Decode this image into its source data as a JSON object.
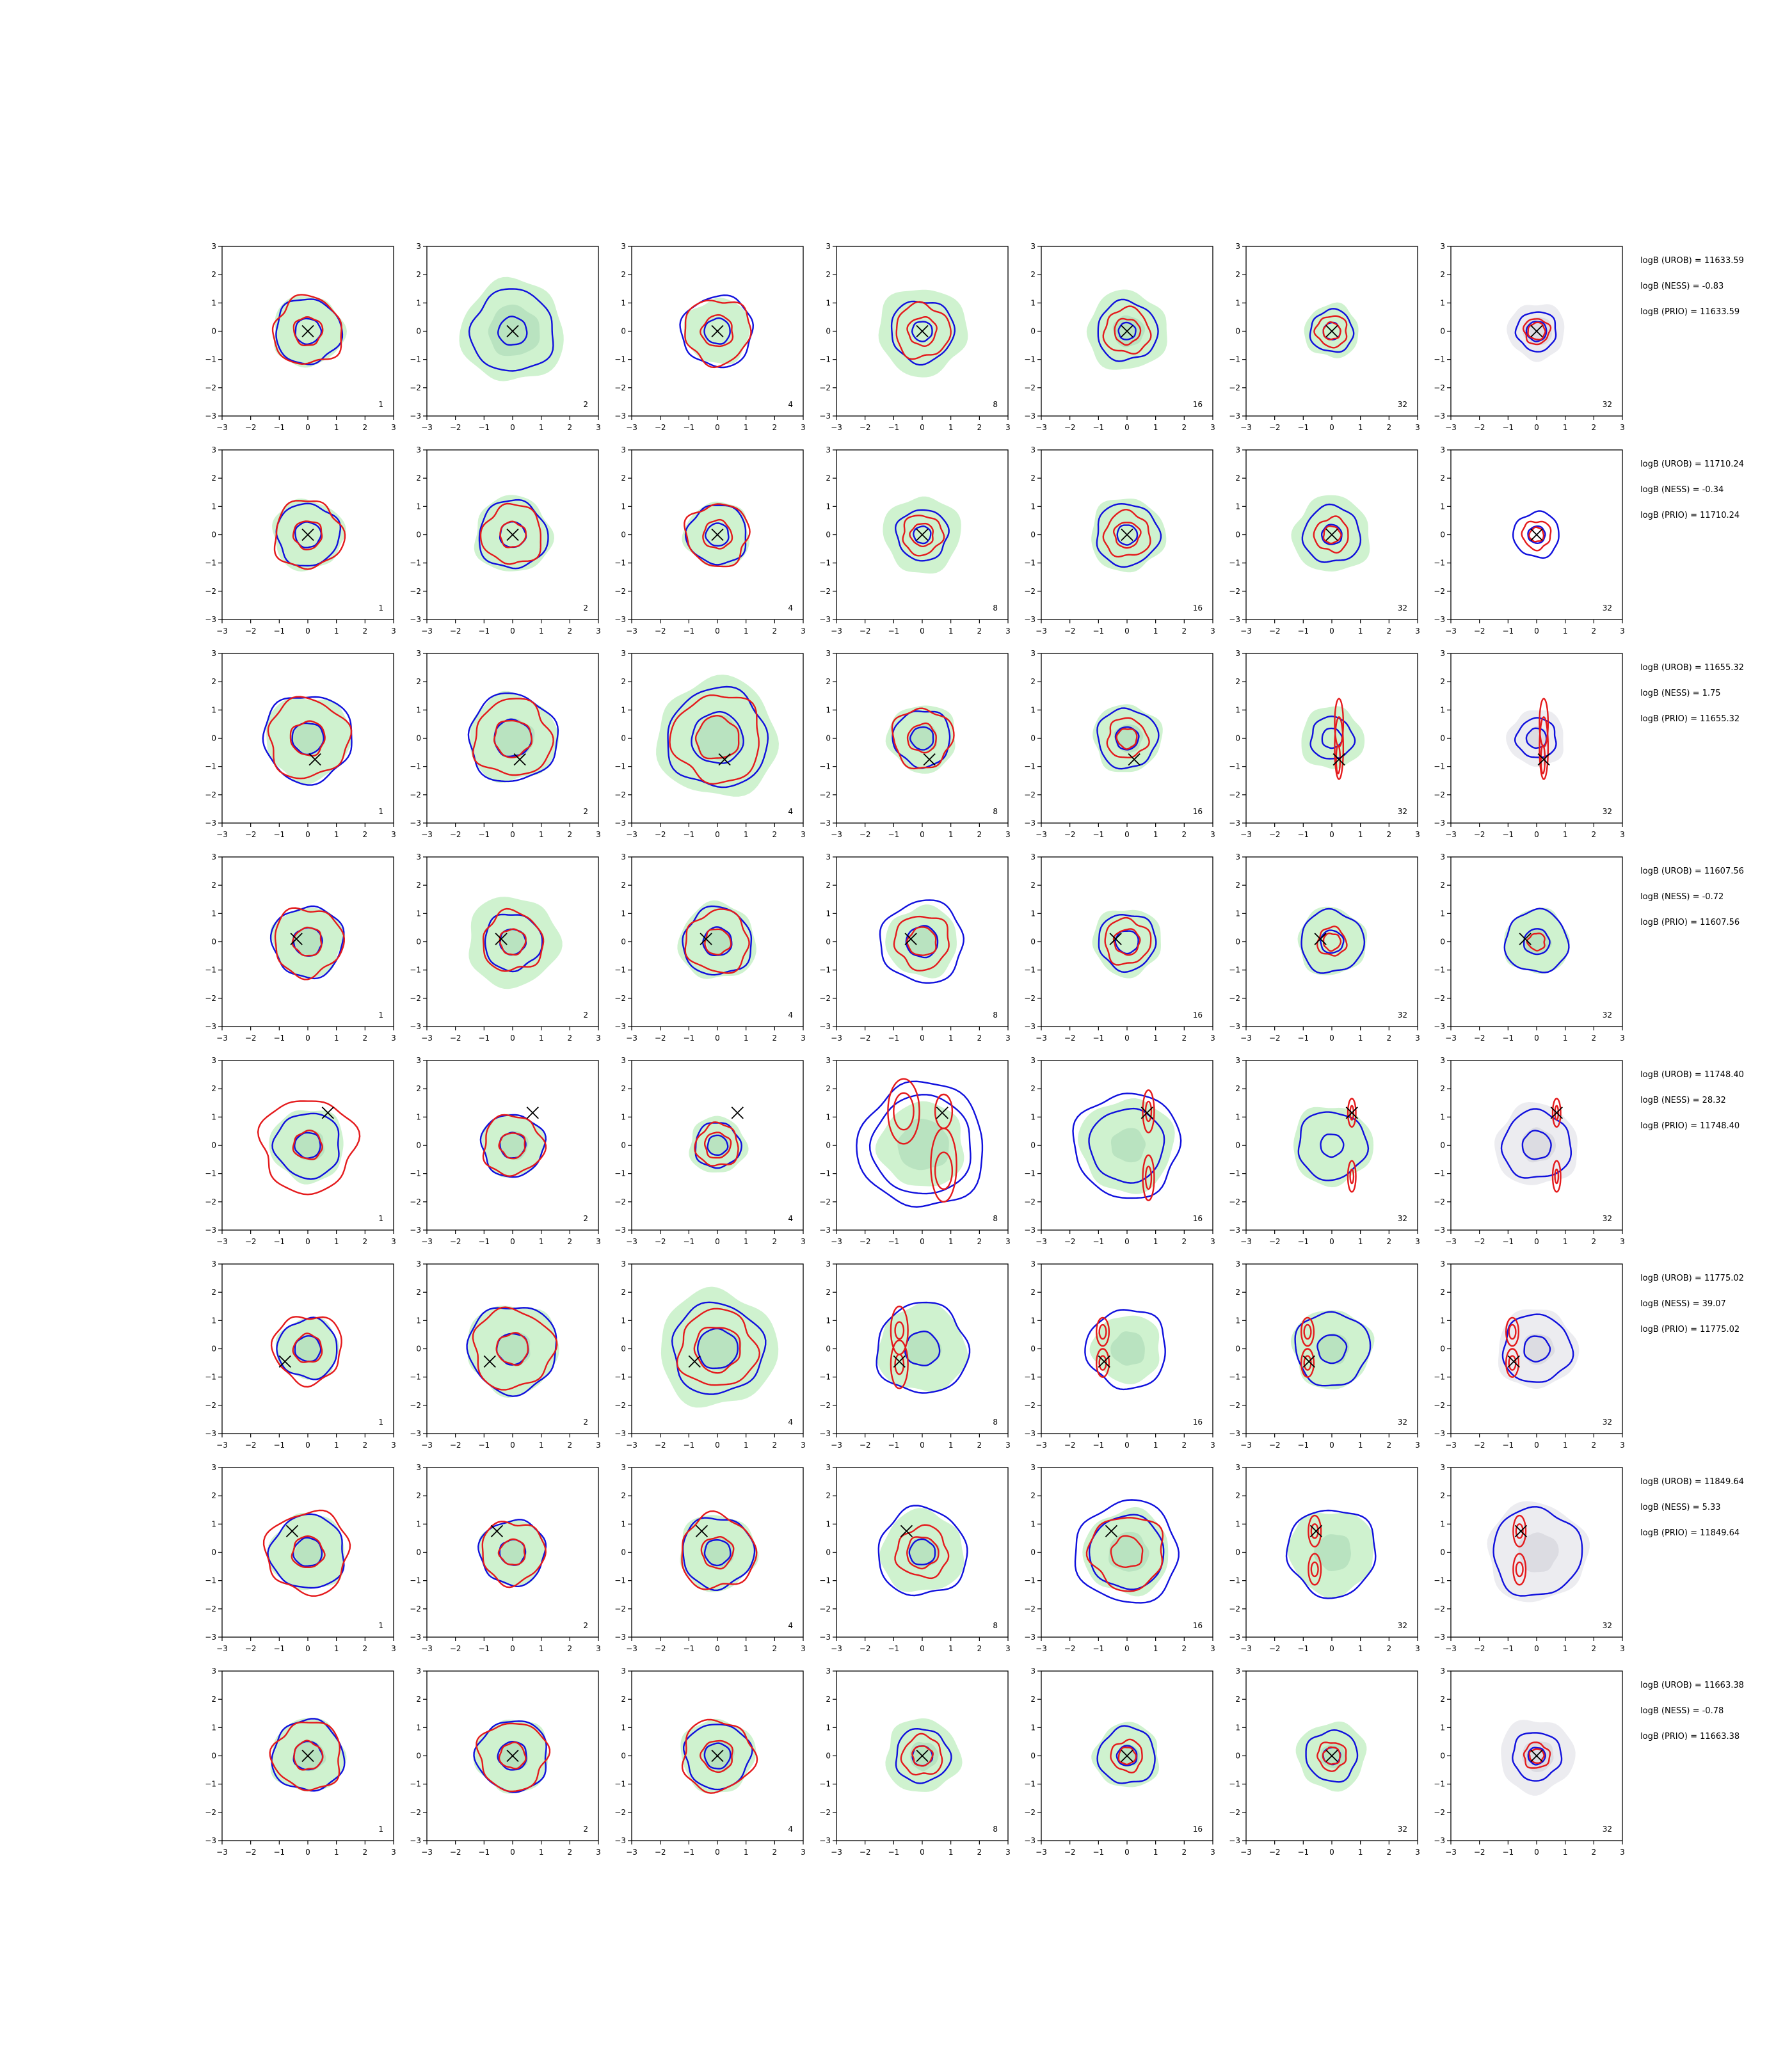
{
  "figure": {
    "axis_ticks": [
      "−3",
      "−2",
      "−1",
      "0",
      "1",
      "2",
      "3"
    ],
    "colors": {
      "tempered_fill_outer": "#cff2cf",
      "tempered_fill_inner": "#b9e3c0",
      "prior_fill_outer": "#ececf0",
      "prior_fill_inner": "#dcdce2",
      "posterior_contour": "#1010dd",
      "likelihood_contour": "#e41a1c",
      "marker": "#000000"
    }
  },
  "chart_data": {
    "type": "contour",
    "panel_grid": {
      "rows": 8,
      "cols": 7
    },
    "xlim": [
      -3,
      3
    ],
    "ylim": [
      -3,
      3
    ],
    "xticks": [
      -3,
      -2,
      -1,
      0,
      1,
      2,
      3
    ],
    "yticks": [
      -3,
      -2,
      -1,
      0,
      1,
      2,
      3
    ],
    "column_labels": [
      "1",
      "2",
      "4",
      "8",
      "16",
      "32",
      "32"
    ],
    "rows": [
      {
        "marker": [
          0,
          0
        ],
        "annotations": [
          "logB (UROB) = 11633.59",
          "logB (NESS) = -0.83",
          "logB (PRIO) = 11633.59"
        ]
      },
      {
        "marker": [
          0,
          0
        ],
        "annotations": [
          "logB (UROB) = 11710.24",
          "logB (NESS) = -0.34",
          "logB (PRIO) = 11710.24"
        ]
      },
      {
        "marker": [
          0.25,
          -0.75
        ],
        "annotations": [
          "logB (UROB) = 11655.32",
          "logB (NESS) = 1.75",
          "logB (PRIO) = 11655.32"
        ]
      },
      {
        "marker": [
          -0.4,
          0.1
        ],
        "annotations": [
          "logB (UROB) = 11607.56",
          "logB (NESS) = -0.72",
          "logB (PRIO) = 11607.56"
        ]
      },
      {
        "marker": [
          0.7,
          1.15
        ],
        "annotations": [
          "logB (UROB) = 11748.40",
          "logB (NESS) = 28.32",
          "logB (PRIO) = 11748.40"
        ]
      },
      {
        "marker": [
          -0.8,
          -0.45
        ],
        "annotations": [
          "logB (UROB) = 11775.02",
          "logB (NESS) = 39.07",
          "logB (PRIO) = 11775.02"
        ]
      },
      {
        "marker": [
          -0.55,
          0.75
        ],
        "annotations": [
          "logB (UROB) = 11849.64",
          "logB (NESS) = 5.33",
          "logB (PRIO) = 11849.64"
        ]
      },
      {
        "marker": [
          0,
          0
        ],
        "annotations": [
          "logB (UROB) = 11663.38",
          "logB (NESS) = -0.78",
          "logB (PRIO) = 11663.38"
        ]
      }
    ]
  }
}
